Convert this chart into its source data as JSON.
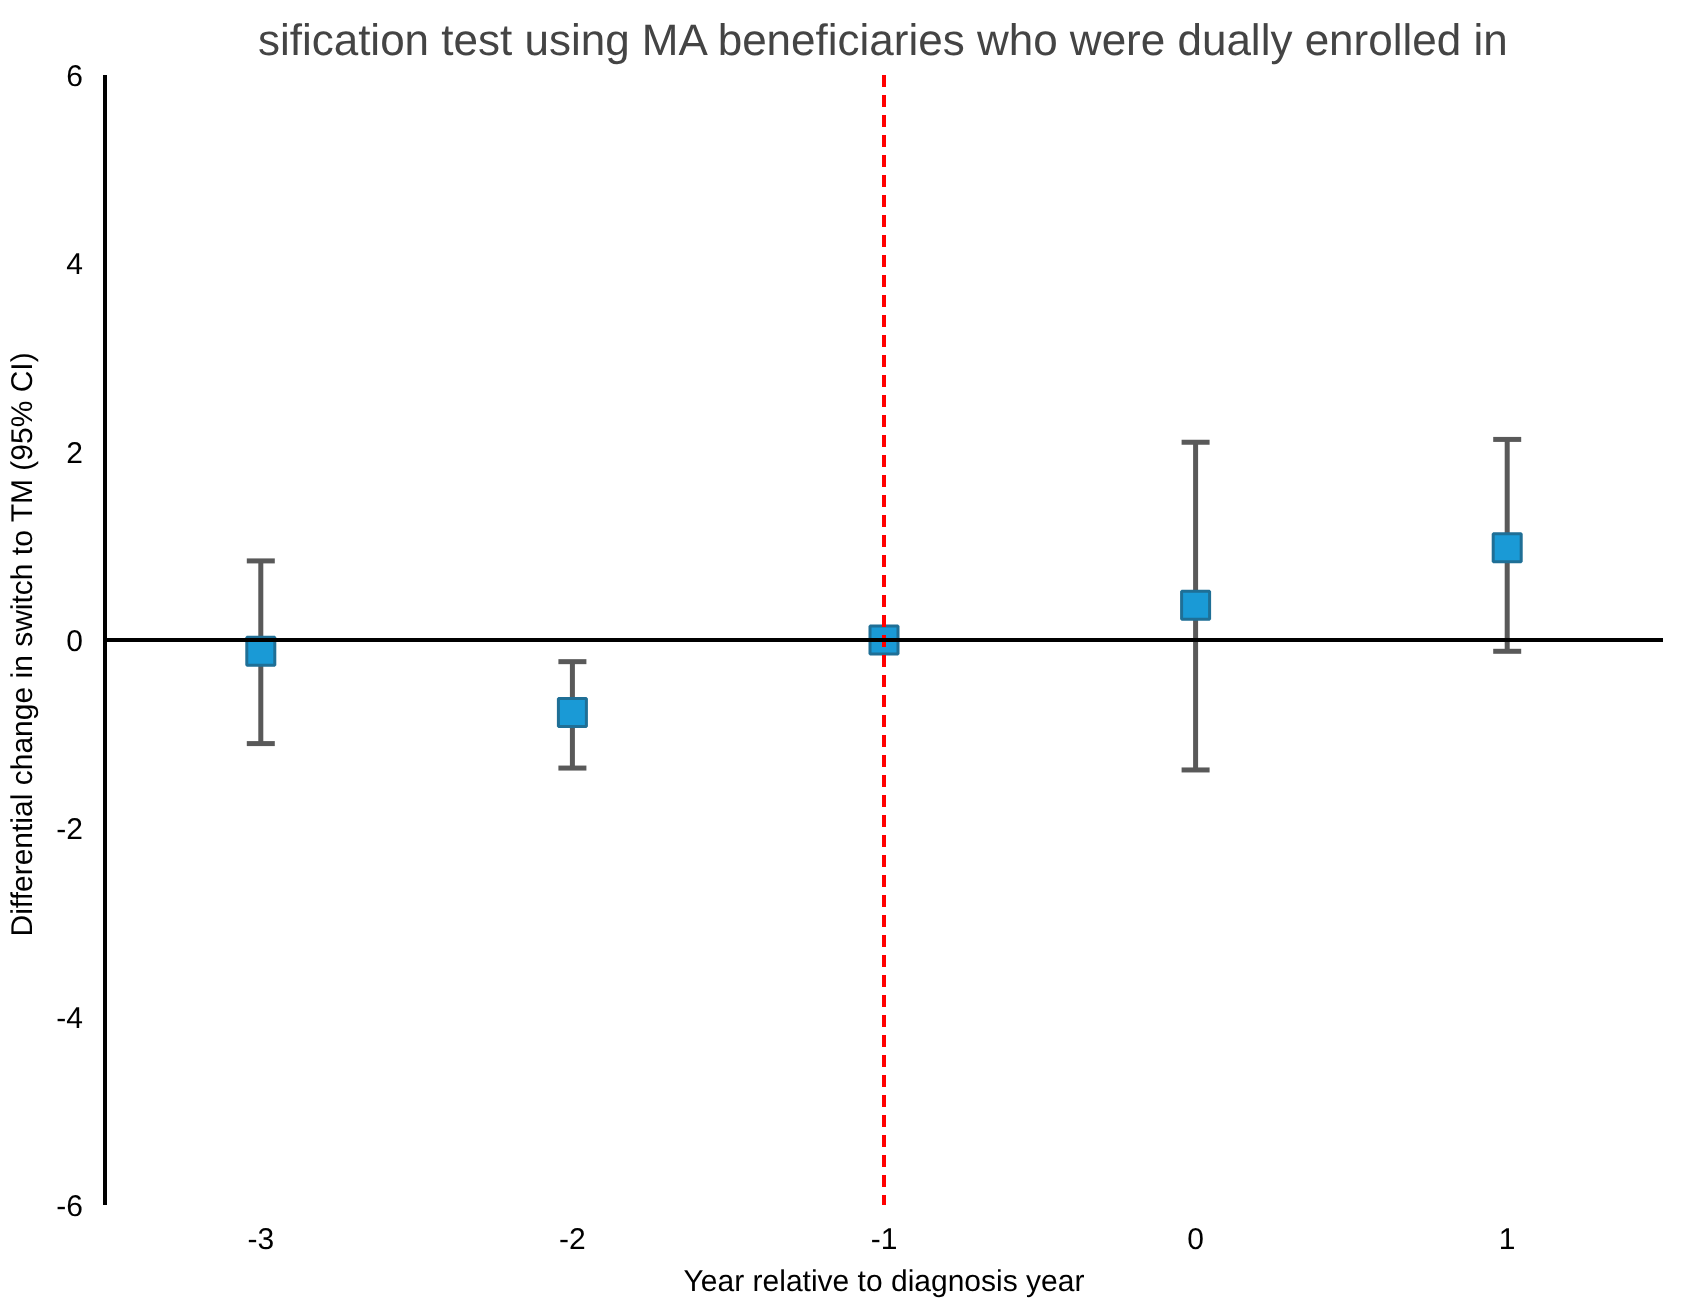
{
  "chart_data": {
    "type": "scatter",
    "annotations": [
      "sification test using MA beneficiaries who were dually enrolled in"
    ],
    "xlabel": "Year relative to diagnosis year",
    "ylabel": "Differential change in switch to TM  (95% CI)",
    "x": [
      -3,
      -2,
      -1,
      0,
      1
    ],
    "series": [
      {
        "color": "#1a9ad6",
        "values": [
          -0.12,
          -0.77,
          0,
          0.37,
          0.98
        ],
        "errors": [
          [
            -1.1,
            0.84
          ],
          [
            -1.36,
            -0.23
          ],
          null,
          [
            -1.38,
            2.1
          ],
          [
            -0.12,
            2.13
          ]
        ]
      }
    ],
    "xlim": [
      -3.5,
      1.5
    ],
    "xticks": [
      -3,
      -2,
      -1,
      0,
      1
    ],
    "ylim": [
      -6,
      6
    ],
    "yticks": [
      -6,
      -4,
      -2,
      0,
      2,
      4,
      6
    ],
    "ref_lines": [
      {
        "axis": "x",
        "value": -1,
        "color": "#ff0000",
        "line_style": "dashed"
      },
      {
        "axis": "y",
        "value": 0,
        "color": "#000000",
        "line_style": "solid"
      }
    ],
    "marker": "square",
    "grid": false
  }
}
